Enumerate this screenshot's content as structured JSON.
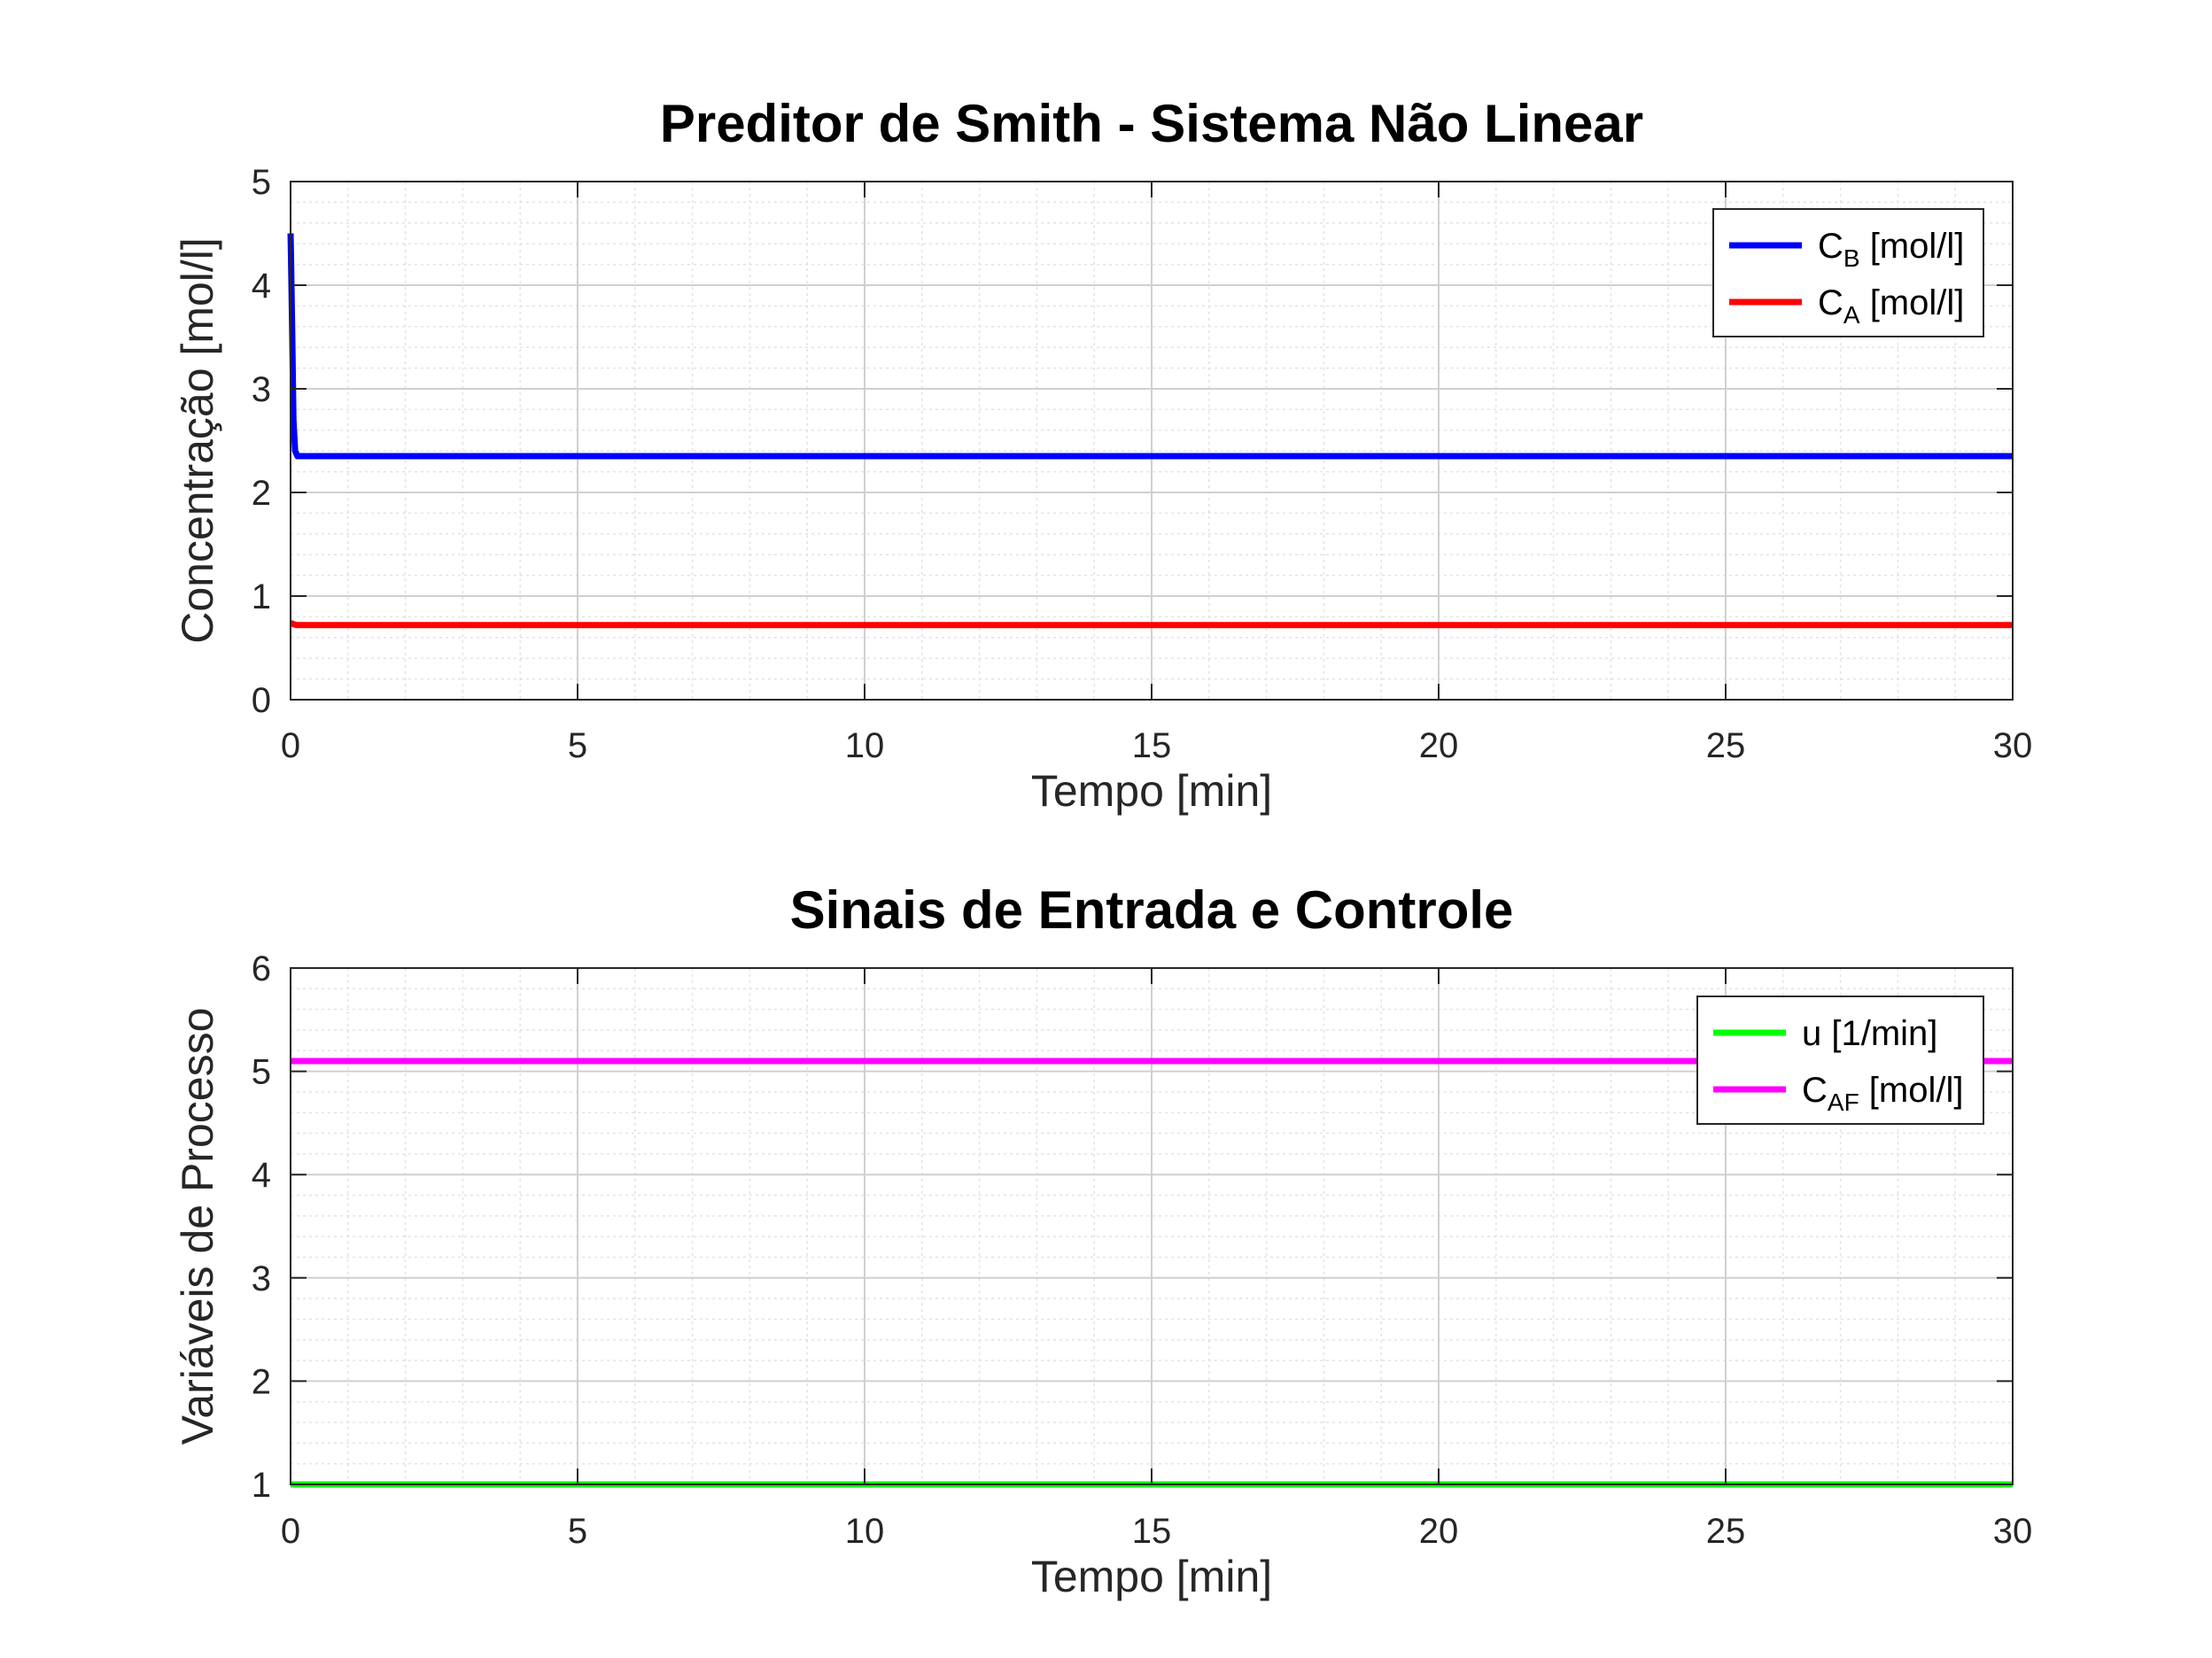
{
  "chart_data": [
    {
      "type": "line",
      "title": "Preditor de Smith - Sistema Não Linear",
      "xlabel": "Tempo [min]",
      "ylabel": "Concentração [mol/l]",
      "xlim": [
        0,
        30
      ],
      "ylim": [
        0,
        5
      ],
      "xticks": [
        0,
        5,
        10,
        15,
        20,
        25,
        30
      ],
      "yticks": [
        0,
        1,
        2,
        3,
        4,
        5
      ],
      "grid": true,
      "minor_grid": true,
      "legend_position": "top-right",
      "series": [
        {
          "name": "C_B [mol/l]",
          "legend_main": "C",
          "legend_sub": "B",
          "legend_rest": " [mol/l]",
          "color": "#0000ff",
          "x": [
            0,
            0.01,
            0.03,
            0.05,
            0.08,
            0.12,
            30
          ],
          "y": [
            4.5,
            4.2,
            3.5,
            2.7,
            2.4,
            2.35,
            2.35
          ]
        },
        {
          "name": "C_A [mol/l]",
          "legend_main": "C",
          "legend_sub": "A",
          "legend_rest": " [mol/l]",
          "color": "#ff0000",
          "x": [
            0,
            0.1,
            30
          ],
          "y": [
            0.74,
            0.72,
            0.72
          ]
        }
      ]
    },
    {
      "type": "line",
      "title": "Sinais de Entrada e Controle",
      "xlabel": "Tempo [min]",
      "ylabel": "Variáveis de Processo",
      "xlim": [
        0,
        30
      ],
      "ylim": [
        1,
        6
      ],
      "xticks": [
        0,
        5,
        10,
        15,
        20,
        25,
        30
      ],
      "yticks": [
        1,
        2,
        3,
        4,
        5,
        6
      ],
      "grid": true,
      "minor_grid": true,
      "legend_position": "top-right",
      "series": [
        {
          "name": "u [1/min]",
          "legend_main": "u [1/min]",
          "legend_sub": "",
          "legend_rest": "",
          "color": "#00ff00",
          "x": [
            0,
            30
          ],
          "y": [
            1.0,
            1.0
          ]
        },
        {
          "name": "C_AF [mol/l]",
          "legend_main": "C",
          "legend_sub": "AF",
          "legend_rest": " [mol/l]",
          "color": "#ff00ff",
          "x": [
            0,
            30
          ],
          "y": [
            5.1,
            5.1
          ]
        }
      ]
    }
  ]
}
